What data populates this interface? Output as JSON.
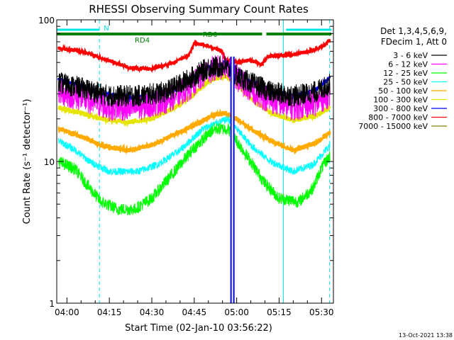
{
  "chart_data": {
    "type": "line",
    "title": "RHESSI Observing Summary Count Rates",
    "xlabel": "Start Time (02-Jan-10 03:56:22)",
    "ylabel": "Count Rate (s⁻¹ detector⁻¹)",
    "yscale": "log",
    "ylim": [
      1,
      100
    ],
    "y_ticks": [
      "1",
      "10",
      "100"
    ],
    "xlim_minutes": [
      236.4,
      334.2
    ],
    "x_ticks": [
      {
        "label": "04:00",
        "min": 240
      },
      {
        "label": "04:15",
        "min": 255
      },
      {
        "label": "04:30",
        "min": 270
      },
      {
        "label": "04:45",
        "min": 285
      },
      {
        "label": "05:00",
        "min": 300
      },
      {
        "label": "05:15",
        "min": 315
      },
      {
        "label": "05:30",
        "min": 330
      }
    ],
    "legend_header": [
      "Det 1,3,4,5,6,9,",
      "FDecim 1, Att 0"
    ],
    "legend_position": "right",
    "timestamp": "13-Oct-2021 13:38",
    "flags": [
      {
        "label": "N",
        "color": "#00e5e5",
        "segments": [
          [
            236.4,
            251.5
          ],
          [
            317.5,
            333.5
          ]
        ]
      },
      {
        "label": "RD0",
        "color": "#008000",
        "segments": [
          [
            236.4,
            288.0
          ],
          [
            288.0,
            309.0
          ],
          [
            310.5,
            333.5
          ]
        ]
      },
      {
        "label": "RD4",
        "color": "#008000",
        "segments": []
      }
    ],
    "vlines": [
      {
        "min": 236.4,
        "style": "solid"
      },
      {
        "min": 251.5,
        "style": "dashed"
      },
      {
        "min": 316.5,
        "style": "solid"
      },
      {
        "min": 332.8,
        "style": "dashed"
      }
    ],
    "gap_minutes": [
      297.8,
      299.2
    ],
    "series": [
      {
        "name": "3 - 6 keV",
        "color": "#000000",
        "noise": 0.18,
        "points": [
          [
            237,
            36
          ],
          [
            245,
            33
          ],
          [
            255,
            29
          ],
          [
            265,
            29
          ],
          [
            275,
            31
          ],
          [
            283,
            38
          ],
          [
            290,
            46
          ],
          [
            296,
            47
          ],
          [
            300,
            40
          ],
          [
            305,
            36
          ],
          [
            312,
            31
          ],
          [
            320,
            29
          ],
          [
            328,
            31
          ],
          [
            333,
            35
          ]
        ]
      },
      {
        "name": "6 - 12 keV",
        "color": "#ff00ff",
        "noise": 0.22,
        "points": [
          [
            237,
            31
          ],
          [
            245,
            28
          ],
          [
            255,
            24
          ],
          [
            265,
            24
          ],
          [
            275,
            27
          ],
          [
            283,
            33
          ],
          [
            290,
            44
          ],
          [
            296,
            47
          ],
          [
            300,
            39
          ],
          [
            305,
            32
          ],
          [
            312,
            27
          ],
          [
            320,
            24
          ],
          [
            328,
            26
          ],
          [
            333,
            30
          ]
        ]
      },
      {
        "name": "12 - 25 keV",
        "color": "#00ff00",
        "noise": 0.1,
        "points": [
          [
            237,
            10
          ],
          [
            243,
            8.8
          ],
          [
            248,
            6.5
          ],
          [
            252,
            5.2
          ],
          [
            258,
            4.6
          ],
          [
            264,
            4.6
          ],
          [
            270,
            5.5
          ],
          [
            278,
            8.5
          ],
          [
            285,
            12.5
          ],
          [
            292,
            17
          ],
          [
            297,
            17
          ],
          [
            300,
            14
          ],
          [
            305,
            10
          ],
          [
            310,
            7
          ],
          [
            315,
            5.5
          ],
          [
            322,
            5.2
          ],
          [
            327,
            6.5
          ],
          [
            330,
            9
          ],
          [
            333,
            11
          ]
        ]
      },
      {
        "name": "25 - 50 keV",
        "color": "#00ffff",
        "noise": 0.06,
        "points": [
          [
            237,
            14
          ],
          [
            243,
            12
          ],
          [
            248,
            10
          ],
          [
            255,
            8.5
          ],
          [
            265,
            8.5
          ],
          [
            272,
            9.5
          ],
          [
            280,
            12
          ],
          [
            288,
            17
          ],
          [
            294,
            19
          ],
          [
            297,
            20
          ],
          [
            300,
            17
          ],
          [
            305,
            13
          ],
          [
            312,
            10
          ],
          [
            320,
            8.5
          ],
          [
            327,
            9.5
          ],
          [
            333,
            13
          ]
        ]
      },
      {
        "name": "50 - 100 keV",
        "color": "#ffaa00",
        "noise": 0.04,
        "points": [
          [
            237,
            17
          ],
          [
            245,
            15
          ],
          [
            252,
            13
          ],
          [
            262,
            12
          ],
          [
            270,
            13
          ],
          [
            278,
            15.5
          ],
          [
            285,
            18
          ],
          [
            291,
            21
          ],
          [
            296,
            22
          ],
          [
            300,
            20
          ],
          [
            305,
            17
          ],
          [
            312,
            14
          ],
          [
            320,
            12
          ],
          [
            328,
            13.5
          ],
          [
            333,
            16
          ]
        ]
      },
      {
        "name": "100 - 300 keV",
        "color": "#e5e500",
        "noise": 0.04,
        "points": [
          [
            237,
            24
          ],
          [
            245,
            22
          ],
          [
            252,
            20
          ],
          [
            262,
            19
          ],
          [
            270,
            20
          ],
          [
            278,
            24
          ],
          [
            285,
            30
          ],
          [
            291,
            38
          ],
          [
            296,
            40
          ],
          [
            300,
            35
          ],
          [
            305,
            28
          ],
          [
            312,
            22
          ],
          [
            320,
            19.5
          ],
          [
            328,
            21
          ],
          [
            333,
            24
          ]
        ]
      },
      {
        "name": "300 - 800 keV",
        "color": "#0000ff",
        "noise": 0.03,
        "points": [
          [
            237,
            38
          ],
          [
            245,
            34
          ],
          [
            252,
            30
          ],
          [
            262,
            28
          ],
          [
            270,
            28.5
          ],
          [
            278,
            32
          ],
          [
            285,
            40
          ],
          [
            291,
            47
          ],
          [
            296,
            49
          ],
          [
            300,
            44
          ],
          [
            305,
            36
          ],
          [
            312,
            31
          ],
          [
            320,
            29
          ],
          [
            328,
            32
          ],
          [
            333,
            39
          ]
        ]
      },
      {
        "name": "800 - 7000 keV",
        "color": "#ff0000",
        "noise": 0.03,
        "points": [
          [
            237,
            63
          ],
          [
            245,
            60
          ],
          [
            252,
            54
          ],
          [
            262,
            46
          ],
          [
            270,
            45
          ],
          [
            278,
            50
          ],
          [
            283,
            56
          ],
          [
            285,
            68
          ],
          [
            288,
            67
          ],
          [
            292,
            63
          ],
          [
            295,
            60
          ],
          [
            296,
            52
          ],
          [
            300,
            50
          ],
          [
            305,
            52
          ],
          [
            309,
            48
          ],
          [
            311,
            55
          ],
          [
            315,
            56
          ],
          [
            320,
            57
          ],
          [
            326,
            60
          ],
          [
            331,
            66
          ],
          [
            333,
            72
          ]
        ]
      },
      {
        "name": "7000 - 15000 keV",
        "color": "#808000",
        "noise": 0.0,
        "points": []
      }
    ]
  }
}
